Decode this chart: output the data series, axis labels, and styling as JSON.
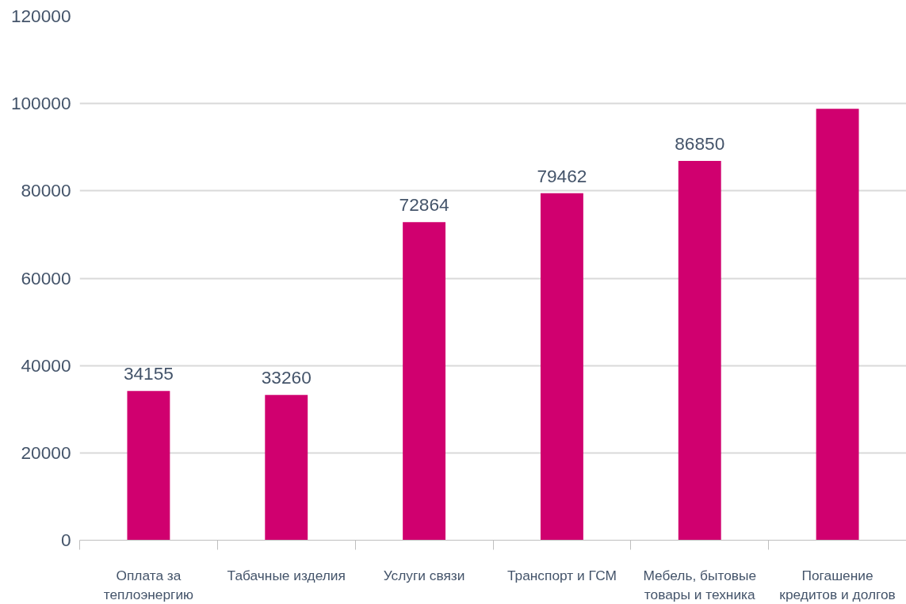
{
  "chart_data": {
    "type": "bar",
    "categories": [
      "Оплата за теплоэнергию",
      "Табачные изделия",
      "Услуги связи",
      "Транспорт и ГСМ",
      "Мебель, бытовые товары и техника",
      "Погашение кредитов и долгов"
    ],
    "values": [
      34155,
      33260,
      72864,
      79462,
      86850,
      98800
    ],
    "value_labels": [
      "34155",
      "33260",
      "72864",
      "79462",
      "86850",
      null
    ],
    "color": "#d0006f",
    "ylim": [
      0,
      120000
    ],
    "yticks": [
      0,
      20000,
      40000,
      60000,
      80000,
      100000,
      120000
    ],
    "grid": "y"
  }
}
